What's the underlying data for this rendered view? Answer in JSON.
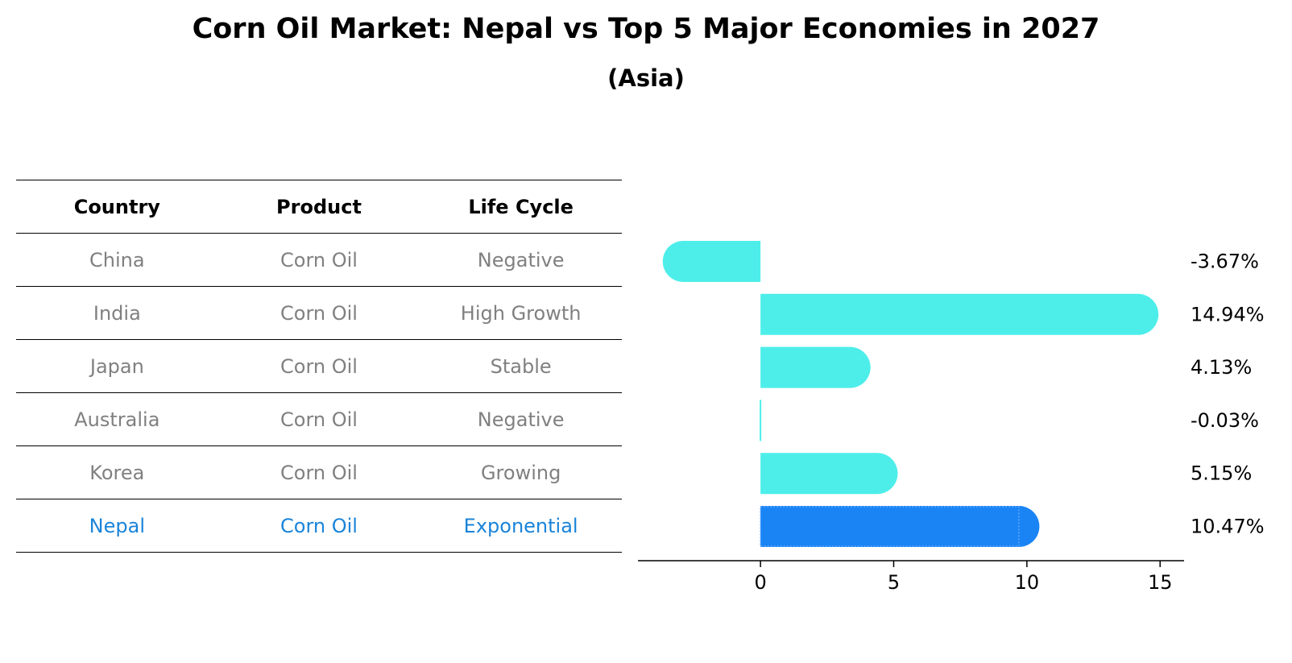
{
  "title": "Corn Oil Market: Nepal vs Top 5 Major Economies in 2027",
  "subtitle": "(Asia)",
  "table": {
    "headers": [
      "Country",
      "Product",
      "Life Cycle"
    ],
    "rows": [
      {
        "country": "China",
        "product": "Corn Oil",
        "life_cycle": "Negative"
      },
      {
        "country": "India",
        "product": "Corn Oil",
        "life_cycle": "High Growth"
      },
      {
        "country": "Japan",
        "product": "Corn Oil",
        "life_cycle": "Stable"
      },
      {
        "country": "Australia",
        "product": "Corn Oil",
        "life_cycle": "Negative"
      },
      {
        "country": "Korea",
        "product": "Corn Oil",
        "life_cycle": "Growing"
      },
      {
        "country": "Nepal",
        "product": "Corn Oil",
        "life_cycle": "Exponential"
      }
    ],
    "highlight_row": 5
  },
  "chart_data": {
    "type": "bar",
    "orientation": "horizontal",
    "categories": [
      "China",
      "India",
      "Japan",
      "Australia",
      "Korea",
      "Nepal"
    ],
    "values": [
      -3.67,
      14.94,
      4.13,
      -0.03,
      5.15,
      10.47
    ],
    "value_labels": [
      "-3.67%",
      "14.94%",
      "4.13%",
      "-0.03%",
      "5.15%",
      "10.47%"
    ],
    "xlim": [
      -4.6,
      15.9
    ],
    "xticks": [
      0,
      5,
      10,
      15
    ],
    "xtick_labels": [
      "0",
      "5",
      "10",
      "15"
    ],
    "bar_color": "#4deeea",
    "highlight_color": "#1a84f5",
    "highlight_index": 5,
    "grid": false,
    "xlabel": "",
    "ylabel": ""
  }
}
